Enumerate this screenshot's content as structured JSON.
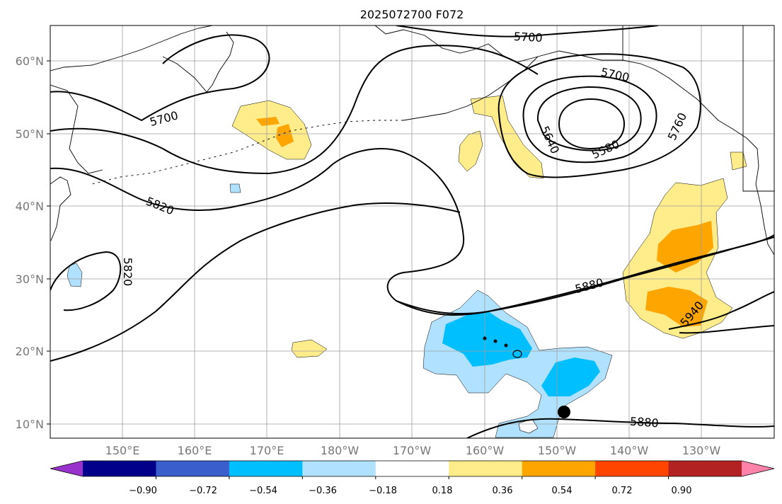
{
  "title": "2025072700 F072",
  "lat_labels": [
    "60°N",
    "50°N",
    "40°N",
    "30°N",
    "20°N",
    "10°N"
  ],
  "lon_labels": [
    "150°E",
    "160°E",
    "170°E",
    "180°W",
    "170°W",
    "160°W",
    "150°W",
    "140°W",
    "130°W"
  ],
  "contour_labels": [
    "5700",
    "5700",
    "5700",
    "5820",
    "5820",
    "5640",
    "5580",
    "5760",
    "5880",
    "5940",
    "5880"
  ],
  "colorbar": {
    "tick_labels": [
      "−0.90",
      "−0.72",
      "−0.54",
      "−0.36",
      "−0.18",
      "0.18",
      "0.36",
      "0.54",
      "0.72",
      "0.90"
    ],
    "colors": [
      "#9932cc",
      "#00008b",
      "#3a5fcd",
      "#00bfff",
      "#b0e2ff",
      "#ffffff",
      "#ffec8b",
      "#ffa500",
      "#ff4500",
      "#b22222",
      "#ff82ab"
    ]
  }
}
